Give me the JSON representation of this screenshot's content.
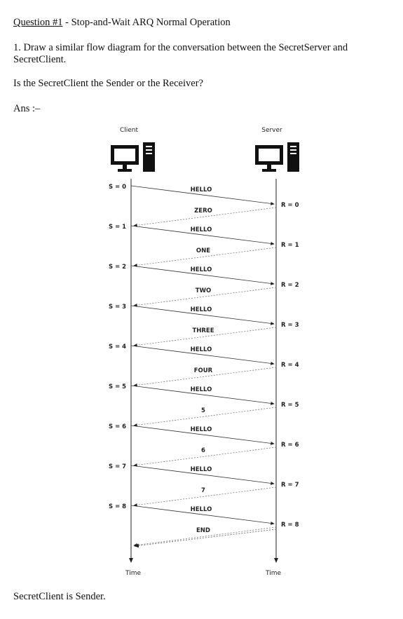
{
  "question": {
    "label": "Question #1",
    "rest": " - Stop-and-Wait ARQ Normal Operation"
  },
  "instruction_line1": "1. Draw a similar flow diagram for the conversation between the SecretServer and",
  "instruction_line2": "SecretClient.",
  "prompt": "Is the SecretClient the Sender or the Receiver?",
  "ans": "Ans :–",
  "diagram": {
    "client_label": "Client",
    "server_label": "Server",
    "time_label_left": "Time",
    "time_label_right": "Time",
    "exchanges": [
      {
        "s": "S = 0",
        "r": "R = 0",
        "msg": "HELLO",
        "reply": "ZERO"
      },
      {
        "s": "S = 1",
        "r": "R = 1",
        "msg": "HELLO",
        "reply": "ONE"
      },
      {
        "s": "S = 2",
        "r": "R = 2",
        "msg": "HELLO",
        "reply": "TWO"
      },
      {
        "s": "S = 3",
        "r": "R = 3",
        "msg": "HELLO",
        "reply": "THREE"
      },
      {
        "s": "S = 4",
        "r": "R = 4",
        "msg": "HELLO",
        "reply": "FOUR"
      },
      {
        "s": "S = 5",
        "r": "R = 5",
        "msg": "HELLO",
        "reply": "5"
      },
      {
        "s": "S = 6",
        "r": "R = 6",
        "msg": "HELLO",
        "reply": "6"
      },
      {
        "s": "S = 7",
        "r": "R = 7",
        "msg": "HELLO",
        "reply": "7"
      },
      {
        "s": "S = 8",
        "r": "R = 8",
        "msg": "HELLO",
        "reply": "END"
      }
    ]
  },
  "answer": "SecretClient is Sender."
}
